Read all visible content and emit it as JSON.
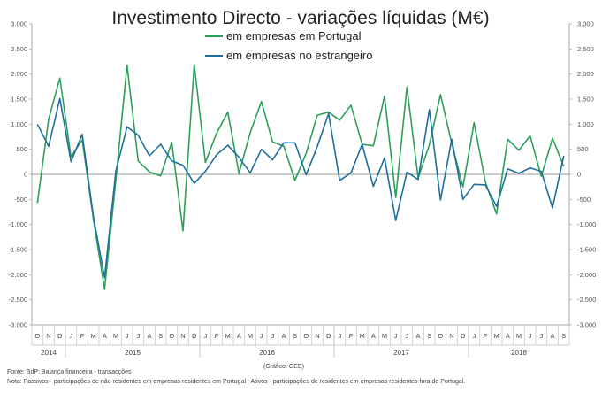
{
  "chart_data": {
    "type": "line",
    "title": "Investimento Directo - variações líquidas (M€)",
    "ylim": [
      -3000,
      3000
    ],
    "yticks": [
      {
        "value": 3000,
        "label": "3.000"
      },
      {
        "value": 2500,
        "label": "2.500"
      },
      {
        "value": 2000,
        "label": "2.000"
      },
      {
        "value": 1500,
        "label": "1.500"
      },
      {
        "value": 1000,
        "label": "1.000"
      },
      {
        "value": 500,
        "label": "500"
      },
      {
        "value": 0,
        "label": "0"
      },
      {
        "value": -500,
        "label": "-500"
      },
      {
        "value": -1000,
        "label": "-1.000"
      },
      {
        "value": -1500,
        "label": "-1.500"
      },
      {
        "value": -2000,
        "label": "-2.000"
      },
      {
        "value": -2500,
        "label": "-2.500"
      },
      {
        "value": -3000,
        "label": "-3.000"
      }
    ],
    "x_labels": [
      "O",
      "N",
      "D",
      "J",
      "F",
      "M",
      "A",
      "M",
      "J",
      "J",
      "A",
      "S",
      "O",
      "N",
      "D",
      "J",
      "F",
      "M",
      "A",
      "M",
      "J",
      "J",
      "A",
      "S",
      "O",
      "N",
      "D",
      "J",
      "F",
      "M",
      "A",
      "M",
      "J",
      "J",
      "A",
      "S",
      "O",
      "N",
      "D",
      "J",
      "F",
      "M",
      "A",
      "M",
      "J",
      "J",
      "A",
      "S"
    ],
    "years": [
      {
        "label": "2014",
        "start": 0,
        "end": 2
      },
      {
        "label": "2015",
        "start": 3,
        "end": 14
      },
      {
        "label": "2016",
        "start": 15,
        "end": 26
      },
      {
        "label": "2017",
        "start": 27,
        "end": 38
      },
      {
        "label": "2018",
        "start": 39,
        "end": 47
      }
    ],
    "series": [
      {
        "name": "em empresas em Portugal",
        "color": "#2ca05a",
        "values": [
          -570,
          1100,
          1920,
          350,
          690,
          -900,
          -2290,
          -120,
          2180,
          270,
          50,
          -30,
          640,
          -1130,
          2190,
          240,
          820,
          1240,
          20,
          830,
          1450,
          650,
          560,
          -120,
          420,
          1180,
          1240,
          1080,
          1380,
          600,
          570,
          1560,
          -460,
          1740,
          -70,
          590,
          1590,
          620,
          -250,
          1030,
          -150,
          -790,
          700,
          480,
          770,
          -40,
          720,
          160
        ]
      },
      {
        "name": "em empresas no estrangeiro",
        "color": "#1f6f9e",
        "values": [
          1000,
          560,
          1510,
          250,
          800,
          -850,
          -2060,
          60,
          950,
          780,
          370,
          600,
          270,
          180,
          -180,
          60,
          390,
          580,
          340,
          30,
          500,
          290,
          630,
          630,
          -10,
          560,
          1210,
          -120,
          30,
          600,
          -240,
          330,
          -920,
          40,
          -100,
          1290,
          -510,
          700,
          -500,
          -200,
          -210,
          -640,
          110,
          20,
          130,
          60,
          -670,
          370
        ]
      }
    ]
  },
  "notes": {
    "source": "Fonte: BdP; Balança financeira - transacções",
    "graphic": "(Gráfico: GEE)",
    "note": "Nota: Passivos - participações de não residentes em empresas residentes em Portugal ; Ativos - participações de residentes em empresas residentes fora de Portugal."
  }
}
